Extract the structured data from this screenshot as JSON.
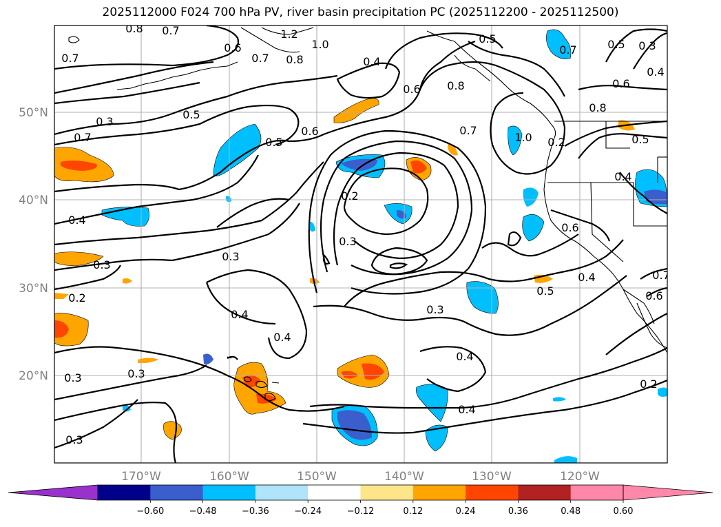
{
  "title": "2025112000 F024 700 hPa PV, river basin precipitation PC (2025112200 - 2025112500)",
  "map": {
    "lon_ticks": [
      "170°W",
      "160°W",
      "150°W",
      "140°W",
      "130°W",
      "120°W"
    ],
    "lat_ticks": [
      "50°N",
      "40°N",
      "30°N",
      "20°N"
    ],
    "contour_labels": [
      "0.8",
      "0.7",
      "0.6",
      "0.7",
      "1.2",
      "1.0",
      "0.8",
      "0.7",
      "0.5",
      "0.7",
      "0.5",
      "0.3",
      "0.7",
      "0.4",
      "0.6",
      "0.8",
      "0.6",
      "0.5",
      "0.3",
      "0.4",
      "0.6",
      "0.5",
      "0.7",
      "1.0",
      "0.8",
      "0.5",
      "0.2",
      "0.4",
      "0.4",
      "0.3",
      "0.3",
      "0.6",
      "0.3",
      "0.2",
      "0.4",
      "0.3",
      "0.5",
      "0.4",
      "0.6",
      "0.7",
      "0.4",
      "0.4",
      "0.3",
      "0.3",
      "0.4",
      "0.3",
      "0.2",
      "0.2"
    ]
  },
  "colorbar": {
    "ticks": [
      "−0.60",
      "−0.48",
      "−0.36",
      "−0.24",
      "−0.12",
      "0.12",
      "0.24",
      "0.36",
      "0.48",
      "0.60"
    ],
    "colors": [
      "#9932cc",
      "#00008b",
      "#3a5fcd",
      "#00bfff",
      "#afe4fa",
      "#ffffff",
      "#fde68a",
      "#ffa500",
      "#ff4500",
      "#b22222",
      "#ff88aa",
      "#ff88aa"
    ]
  }
}
